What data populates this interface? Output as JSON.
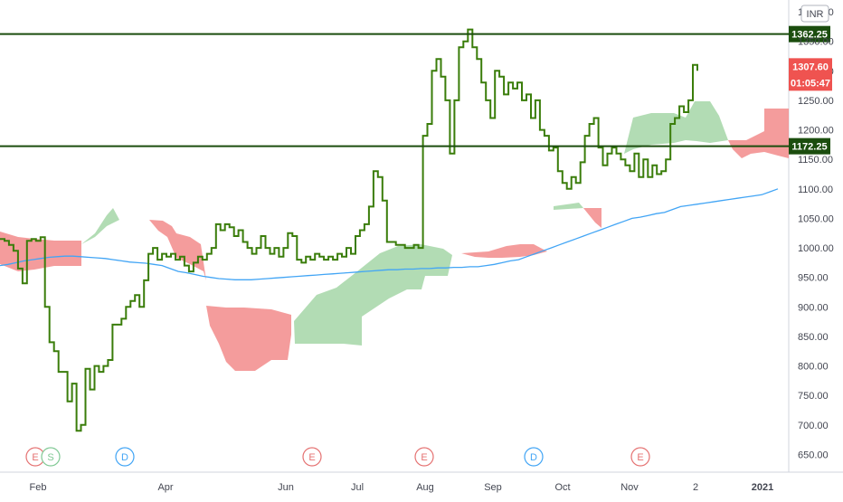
{
  "chart_data": {
    "type": "line",
    "currency": "INR",
    "y_range": [
      620,
      1420
    ],
    "y_ticks": [
      "1400.00",
      "1350.00",
      "1300.00",
      "1250.00",
      "1200.00",
      "1150.00",
      "1100.00",
      "1050.00",
      "1000.00",
      "950.00",
      "900.00",
      "850.00",
      "800.00",
      "750.00",
      "700.00",
      "650.00"
    ],
    "y_tick_values": [
      1400,
      1350,
      1300,
      1250,
      1200,
      1150,
      1100,
      1050,
      1000,
      950,
      900,
      850,
      800,
      750,
      700,
      650
    ],
    "x_labels": [
      "Feb",
      "Apr",
      "Jun",
      "Jul",
      "Aug",
      "Sep",
      "Oct",
      "Nov",
      "2",
      "2021"
    ],
    "horizontal_lines": [
      {
        "value": 1362.25,
        "label": "1362.25"
      },
      {
        "value": 1172.25,
        "label": "1172.25"
      }
    ],
    "price_labels": {
      "last": "1307.60",
      "countdown": "01:05:47"
    },
    "price_last_value": 1307.6,
    "event_markers": [
      {
        "label": "E",
        "color": "#e57373"
      },
      {
        "label": "S",
        "color": "#81c995"
      },
      {
        "label": "D",
        "color": "#42a5f5"
      },
      {
        "label": "E",
        "color": "#e57373"
      },
      {
        "label": "E",
        "color": "#e57373"
      },
      {
        "label": "D",
        "color": "#42a5f5"
      },
      {
        "label": "E",
        "color": "#e57373"
      }
    ],
    "colors": {
      "price_line": "#3a7d0a",
      "hline": "#1b4d0e",
      "ma_line": "#42a5f5",
      "cloud_bull": "#a5d6a7",
      "cloud_bear": "#f28b8b",
      "last_label": "#ef5350"
    },
    "series": [
      {
        "values": [
          1015,
          1012,
          1005,
          995,
          965,
          940,
          1012,
          1015,
          1012,
          1018,
          900,
          840,
          825,
          790,
          790,
          740,
          770,
          690,
          700,
          795,
          760,
          800,
          790,
          800,
          810,
          870,
          870,
          880,
          900,
          910,
          920,
          900,
          945,
          990,
          1000,
          980,
          990,
          985,
          990,
          980,
          985,
          970,
          960,
          975,
          985,
          980,
          990,
          1000,
          1040,
          1030,
          1040,
          1035,
          1020,
          1030,
          1010,
          1000,
          990,
          1000,
          1020,
          1000,
          990,
          1000,
          985,
          1000,
          1025,
          1020,
          980,
          975,
          985,
          980,
          990,
          985,
          980,
          985,
          980,
          990,
          985,
          1000,
          990,
          1020,
          1030,
          1040,
          1070,
          1130,
          1120,
          1080,
          1010,
          1010,
          1005,
          1005,
          1000,
          1000,
          1005,
          1000,
          1190,
          1210,
          1300,
          1320,
          1290,
          1250,
          1160,
          1250,
          1340,
          1350,
          1370,
          1340,
          1320,
          1280,
          1250,
          1220,
          1300,
          1290,
          1260,
          1280,
          1270,
          1280,
          1250,
          1260,
          1220,
          1250,
          1200,
          1190,
          1165,
          1170,
          1130,
          1110,
          1100,
          1120,
          1110,
          1145,
          1190,
          1210,
          1220,
          1170,
          1140,
          1160,
          1170,
          1160,
          1150,
          1140,
          1130,
          1160,
          1120,
          1150,
          1120,
          1140,
          1125,
          1130,
          1150,
          1210,
          1220,
          1240,
          1230,
          1250,
          1310,
          1300
        ]
      },
      {
        "values": [
          970,
          972,
          975,
          978,
          980,
          982,
          984,
          985,
          986,
          986,
          985,
          984,
          983,
          982,
          980,
          978,
          976,
          975,
          974,
          972,
          970,
          965,
          960,
          958,
          955,
          952,
          950,
          948,
          947,
          946,
          946,
          946,
          947,
          948,
          949,
          950,
          951,
          952,
          953,
          954,
          955,
          956,
          957,
          958,
          959,
          960,
          961,
          962,
          963,
          963,
          964,
          964,
          965,
          965,
          966,
          966,
          967,
          967,
          968,
          968,
          970,
          972,
          975,
          978,
          980,
          985,
          990,
          995,
          1000,
          1005,
          1010,
          1015,
          1020,
          1025,
          1030,
          1035,
          1040,
          1045,
          1050,
          1052,
          1055,
          1058,
          1060,
          1065,
          1070,
          1072,
          1074,
          1076,
          1078,
          1080,
          1082,
          1084,
          1086,
          1088,
          1090,
          1095,
          1100
        ]
      }
    ]
  }
}
